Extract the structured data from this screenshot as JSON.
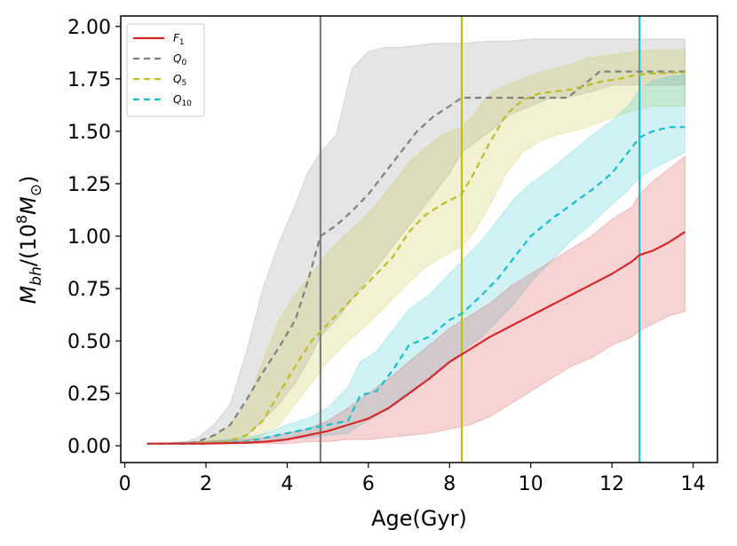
{
  "chart_data": {
    "type": "line",
    "title": "",
    "xlabel": "Age(Gyr)",
    "ylabel_parts": {
      "main": "M",
      "sub": "bh",
      "mid": "/(10",
      "sup": "8",
      "unit": "M",
      "unit_sub": "⊙",
      "close": ")"
    },
    "xlim": [
      -0.1,
      14.6
    ],
    "ylim": [
      -0.08,
      2.05
    ],
    "xticks": [
      0,
      2,
      4,
      6,
      8,
      10,
      12,
      14
    ],
    "xtick_labels": [
      "0",
      "2",
      "4",
      "6",
      "8",
      "10",
      "12",
      "14"
    ],
    "yticks": [
      0.0,
      0.25,
      0.5,
      0.75,
      1.0,
      1.25,
      1.5,
      1.75,
      2.0
    ],
    "ytick_labels": [
      "0.00",
      "0.25",
      "0.50",
      "0.75",
      "1.00",
      "1.25",
      "1.50",
      "1.75",
      "2.00"
    ],
    "legend_position": "top-left",
    "vlines": [
      {
        "x": 4.82,
        "color": "#7f7f7f"
      },
      {
        "x": 8.3,
        "color": "#bcbd22"
      },
      {
        "x": 12.68,
        "color": "#17becf"
      }
    ],
    "series": [
      {
        "name": "Q_0",
        "label_main": "Q",
        "label_sub": "0",
        "color": "#7f7f7f",
        "dash": "7,5",
        "x": [
          0.55,
          1.5,
          1.8,
          2.2,
          2.6,
          3.0,
          3.4,
          3.8,
          4.2,
          4.5,
          4.82,
          5.2,
          5.6,
          6.0,
          6.4,
          6.8,
          7.2,
          7.6,
          8.0,
          8.3,
          9.0,
          9.5,
          10.0,
          10.5,
          10.9,
          11.3,
          11.7,
          12.0,
          12.5,
          13.0,
          13.5,
          13.8
        ],
        "values": [
          0.01,
          0.01,
          0.02,
          0.05,
          0.1,
          0.22,
          0.35,
          0.47,
          0.6,
          0.78,
          1.0,
          1.05,
          1.12,
          1.2,
          1.3,
          1.4,
          1.5,
          1.57,
          1.62,
          1.66,
          1.66,
          1.66,
          1.66,
          1.66,
          1.66,
          1.72,
          1.785,
          1.785,
          1.785,
          1.785,
          1.785,
          1.785
        ],
        "band_upper": [
          0.01,
          0.02,
          0.04,
          0.1,
          0.2,
          0.45,
          0.75,
          0.97,
          1.15,
          1.3,
          1.4,
          1.48,
          1.8,
          1.88,
          1.9,
          1.9,
          1.91,
          1.92,
          1.92,
          1.92,
          1.93,
          1.93,
          1.94,
          1.94,
          1.94,
          1.94,
          1.94,
          1.94,
          1.94,
          1.94,
          1.94,
          1.94
        ],
        "band_lower": [
          0.01,
          0.01,
          0.01,
          0.01,
          0.02,
          0.05,
          0.12,
          0.2,
          0.3,
          0.4,
          0.52,
          0.6,
          0.7,
          0.8,
          0.9,
          1.0,
          1.1,
          1.2,
          1.3,
          1.4,
          1.5,
          1.58,
          1.62,
          1.66,
          1.66,
          1.68,
          1.7,
          1.72,
          1.72,
          1.72,
          1.72,
          1.72
        ]
      },
      {
        "name": "Q_5",
        "label_main": "Q",
        "label_sub": "5",
        "color": "#bcbd22",
        "dash": "7,5",
        "x": [
          0.55,
          1.5,
          2.0,
          2.5,
          3.0,
          3.4,
          3.8,
          4.2,
          4.6,
          5.0,
          5.4,
          5.8,
          6.2,
          6.6,
          7.0,
          7.4,
          7.8,
          8.3,
          8.6,
          9.0,
          9.4,
          9.8,
          10.2,
          10.6,
          11.0,
          11.4,
          11.8,
          12.2,
          12.6,
          13.0,
          13.5,
          13.8
        ],
        "values": [
          0.01,
          0.01,
          0.015,
          0.02,
          0.05,
          0.12,
          0.25,
          0.38,
          0.5,
          0.58,
          0.66,
          0.74,
          0.82,
          0.9,
          1.02,
          1.1,
          1.15,
          1.2,
          1.3,
          1.45,
          1.58,
          1.65,
          1.68,
          1.69,
          1.7,
          1.72,
          1.74,
          1.75,
          1.77,
          1.775,
          1.78,
          1.78
        ],
        "band_upper": [
          0.01,
          0.01,
          0.03,
          0.08,
          0.2,
          0.4,
          0.6,
          0.72,
          0.82,
          0.92,
          1.0,
          1.07,
          1.15,
          1.25,
          1.35,
          1.42,
          1.48,
          1.52,
          1.58,
          1.68,
          1.72,
          1.75,
          1.78,
          1.8,
          1.82,
          1.85,
          1.86,
          1.87,
          1.88,
          1.89,
          1.89,
          1.89
        ],
        "band_lower": [
          0.01,
          0.01,
          0.01,
          0.01,
          0.02,
          0.05,
          0.1,
          0.2,
          0.3,
          0.4,
          0.48,
          0.55,
          0.62,
          0.7,
          0.78,
          0.85,
          0.9,
          0.95,
          1.02,
          1.15,
          1.3,
          1.4,
          1.45,
          1.48,
          1.5,
          1.52,
          1.55,
          1.58,
          1.6,
          1.62,
          1.62,
          1.62
        ]
      },
      {
        "name": "Q_10",
        "label_main": "Q",
        "label_sub": "10",
        "color": "#17becf",
        "dash": "7,5",
        "x": [
          0.55,
          2.0,
          3.0,
          3.5,
          4.0,
          4.5,
          5.0,
          5.5,
          5.8,
          6.2,
          6.6,
          7.0,
          7.5,
          8.0,
          8.3,
          8.8,
          9.2,
          9.6,
          10.0,
          10.5,
          11.0,
          11.5,
          12.0,
          12.4,
          12.68,
          13.0,
          13.4,
          13.8
        ],
        "values": [
          0.01,
          0.01,
          0.02,
          0.04,
          0.06,
          0.08,
          0.1,
          0.12,
          0.24,
          0.26,
          0.36,
          0.48,
          0.52,
          0.6,
          0.63,
          0.72,
          0.8,
          0.9,
          1.0,
          1.08,
          1.15,
          1.22,
          1.3,
          1.4,
          1.47,
          1.5,
          1.52,
          1.52
        ],
        "band_upper": [
          0.01,
          0.02,
          0.04,
          0.06,
          0.1,
          0.13,
          0.18,
          0.28,
          0.4,
          0.45,
          0.55,
          0.65,
          0.72,
          0.82,
          0.88,
          0.98,
          1.08,
          1.18,
          1.25,
          1.32,
          1.4,
          1.48,
          1.55,
          1.62,
          1.7,
          1.74,
          1.76,
          1.77
        ],
        "band_lower": [
          0.01,
          0.01,
          0.01,
          0.02,
          0.03,
          0.04,
          0.05,
          0.06,
          0.1,
          0.14,
          0.2,
          0.26,
          0.32,
          0.4,
          0.45,
          0.52,
          0.6,
          0.68,
          0.78,
          0.88,
          0.98,
          1.06,
          1.15,
          1.22,
          1.28,
          1.32,
          1.36,
          1.4
        ]
      },
      {
        "name": "F_1",
        "label_main": "F",
        "label_sub": "1",
        "color": "#d62728",
        "dash": "",
        "x": [
          0.55,
          2.0,
          3.0,
          3.5,
          4.0,
          4.5,
          5.0,
          5.5,
          6.0,
          6.5,
          7.0,
          7.5,
          8.0,
          8.5,
          9.0,
          9.5,
          10.0,
          10.5,
          11.0,
          11.5,
          12.0,
          12.5,
          12.68,
          13.0,
          13.4,
          13.8
        ],
        "values": [
          0.01,
          0.01,
          0.015,
          0.02,
          0.03,
          0.05,
          0.07,
          0.1,
          0.13,
          0.18,
          0.25,
          0.32,
          0.4,
          0.46,
          0.52,
          0.57,
          0.62,
          0.67,
          0.72,
          0.77,
          0.82,
          0.88,
          0.91,
          0.93,
          0.97,
          1.02
        ],
        "band_upper": [
          0.01,
          0.02,
          0.03,
          0.04,
          0.06,
          0.08,
          0.12,
          0.18,
          0.25,
          0.32,
          0.4,
          0.48,
          0.56,
          0.62,
          0.68,
          0.76,
          0.82,
          0.88,
          0.94,
          1.0,
          1.08,
          1.14,
          1.2,
          1.26,
          1.32,
          1.38
        ],
        "band_lower": [
          0.01,
          0.01,
          0.01,
          0.01,
          0.01,
          0.02,
          0.02,
          0.03,
          0.03,
          0.04,
          0.05,
          0.06,
          0.08,
          0.1,
          0.14,
          0.2,
          0.26,
          0.32,
          0.38,
          0.42,
          0.48,
          0.52,
          0.55,
          0.58,
          0.62,
          0.64
        ]
      }
    ],
    "legend_order": [
      "F_1",
      "Q_0",
      "Q_5",
      "Q_10"
    ]
  }
}
